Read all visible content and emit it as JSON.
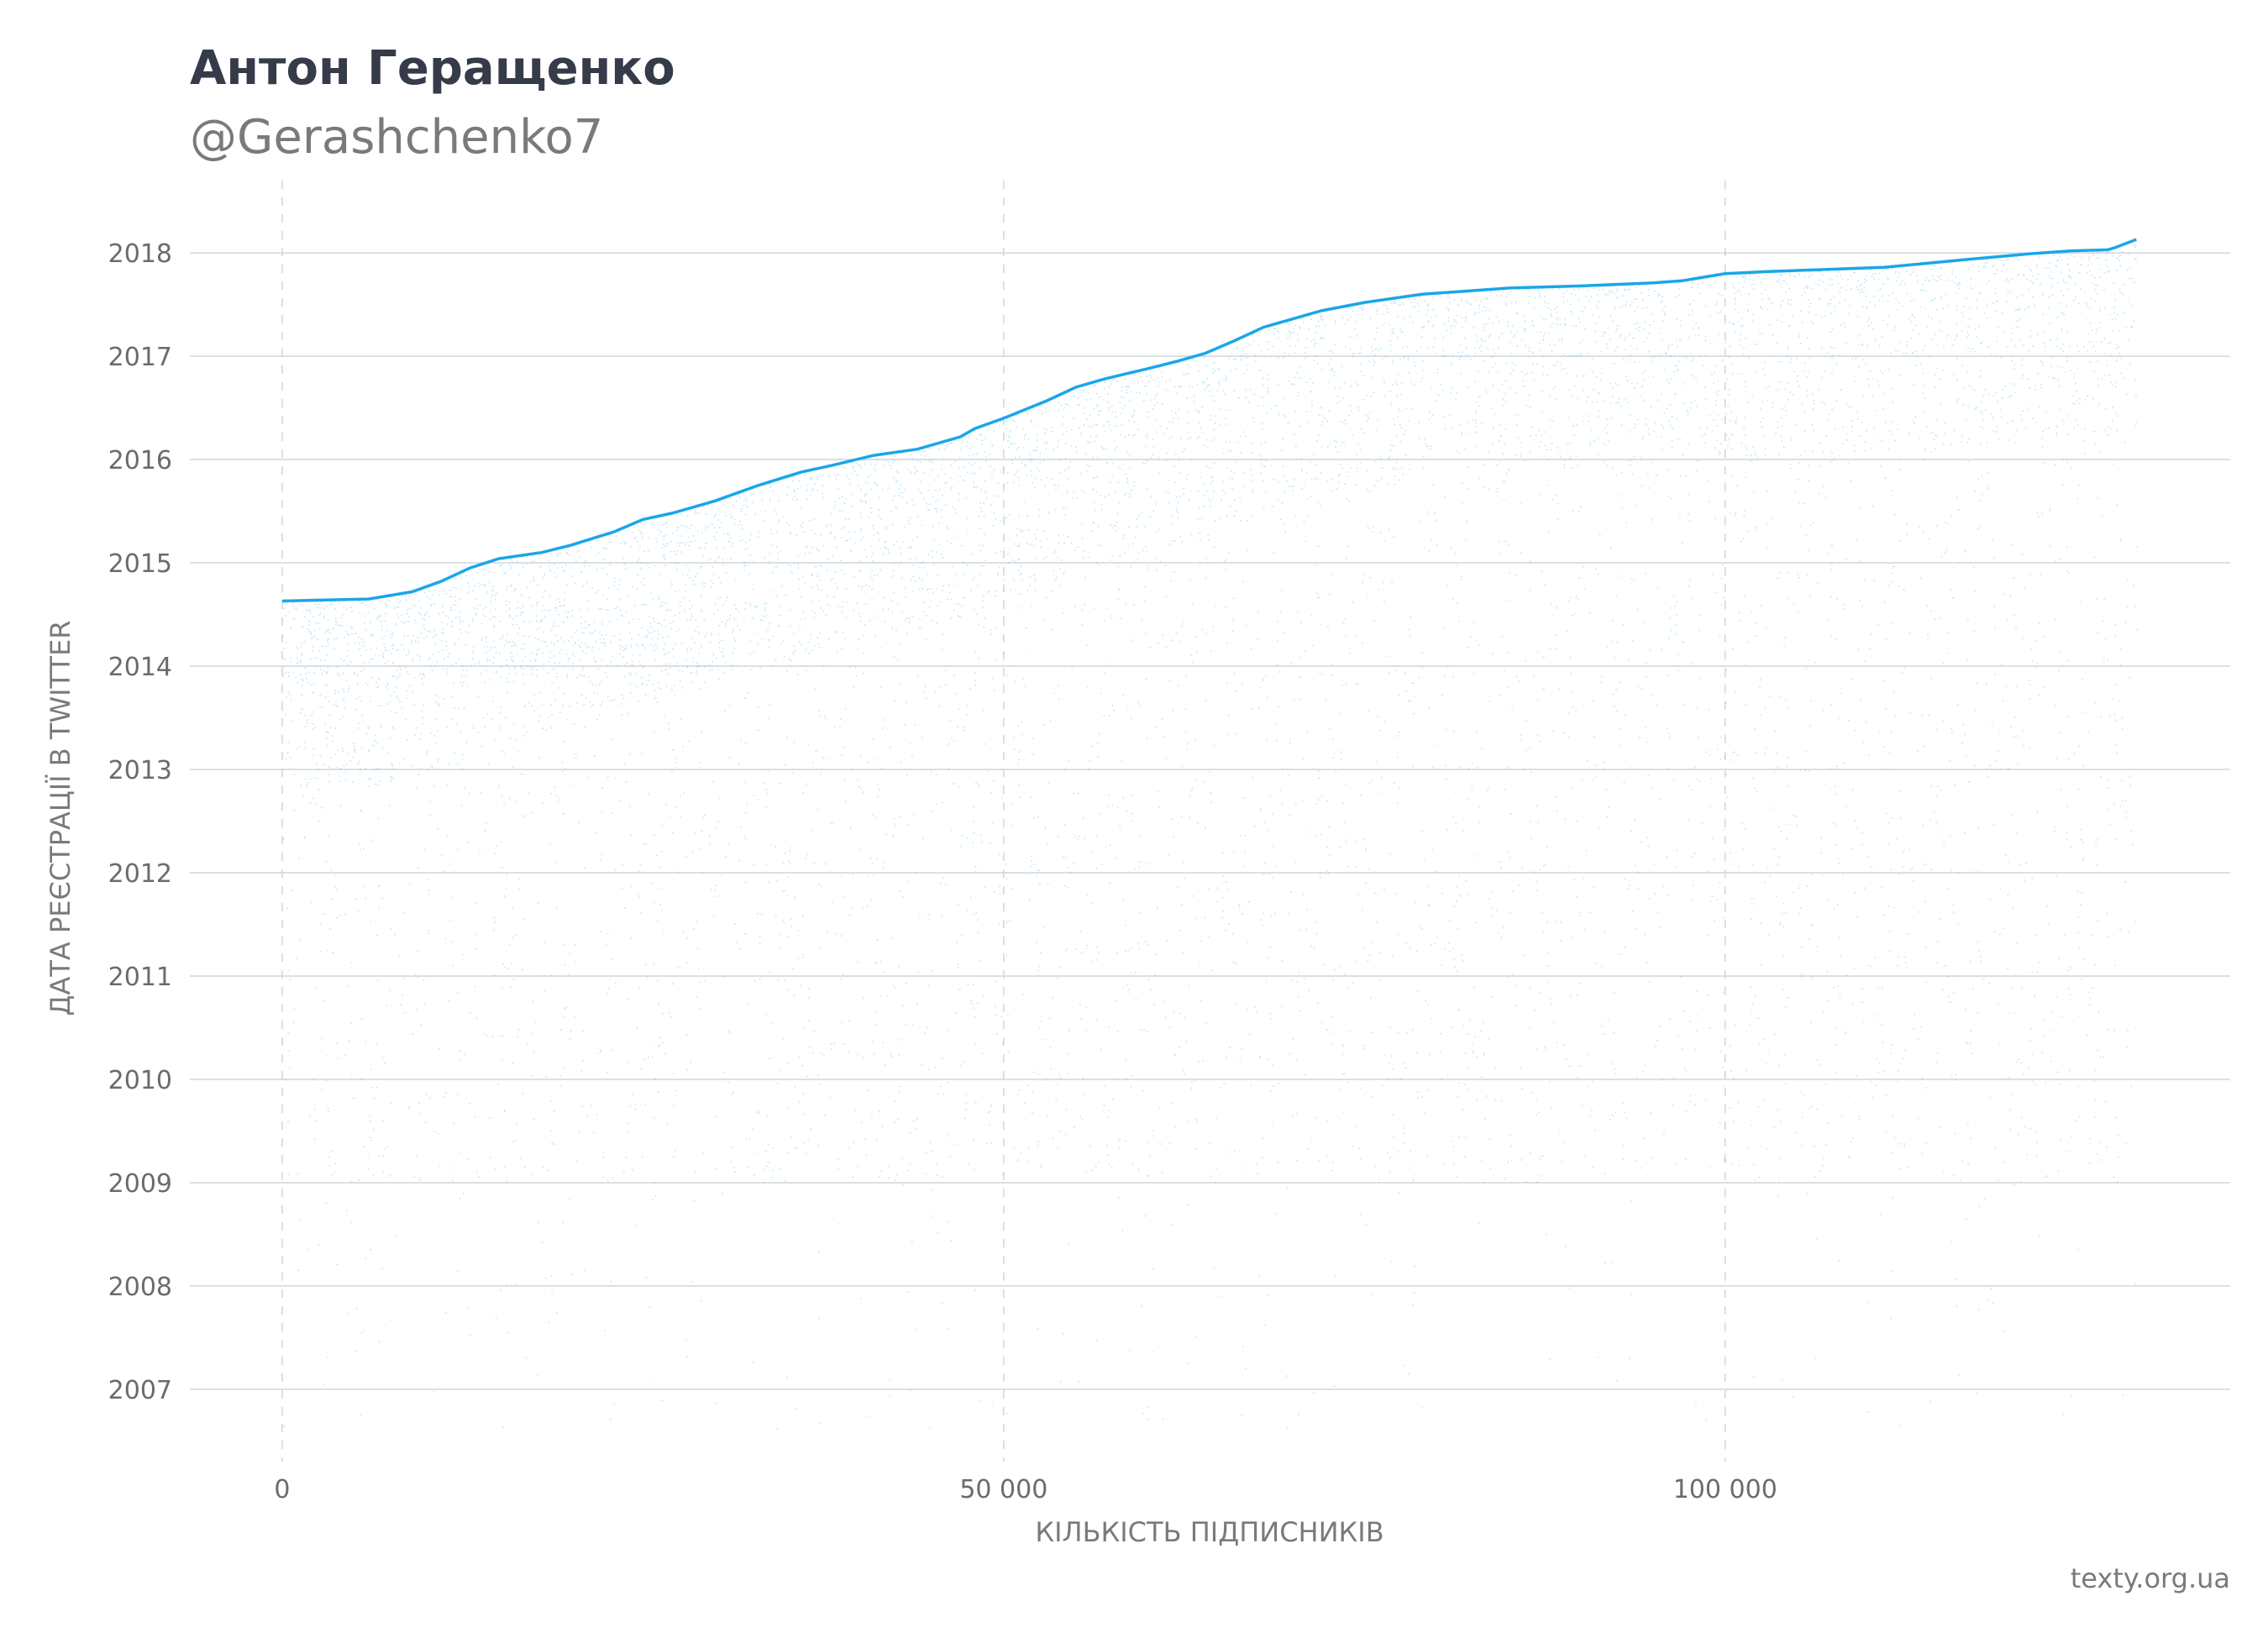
{
  "header": {
    "title": "Антон Геращенко",
    "subtitle": "@Gerashchenko7"
  },
  "footer": {
    "source": "texty.org.ua"
  },
  "colors": {
    "accent": "#1aa6e8",
    "grid": "#cfd6dc",
    "text": "#353b48",
    "muted": "#7a7a7a"
  },
  "chart_data": {
    "type": "scatter",
    "xlabel": "КІЛЬКІСТЬ ПІДПИСНИКІВ",
    "ylabel": "ДАТА РЕЄСТРАЦІЇ В TWITTER",
    "xlim": [
      -6400,
      135000
    ],
    "ylim": [
      2006.3,
      2018.7
    ],
    "x_ticks": [
      {
        "value": 0,
        "label": "0"
      },
      {
        "value": 50000,
        "label": "50 000"
      },
      {
        "value": 100000,
        "label": "100 000"
      }
    ],
    "y_ticks": [
      {
        "value": 2007,
        "label": "2007"
      },
      {
        "value": 2008,
        "label": "2008"
      },
      {
        "value": 2009,
        "label": "2009"
      },
      {
        "value": 2010,
        "label": "2010"
      },
      {
        "value": 2011,
        "label": "2011"
      },
      {
        "value": 2012,
        "label": "2012"
      },
      {
        "value": 2013,
        "label": "2013"
      },
      {
        "value": 2014,
        "label": "2014"
      },
      {
        "value": 2015,
        "label": "2015"
      },
      {
        "value": 2016,
        "label": "2016"
      },
      {
        "value": 2017,
        "label": "2017"
      },
      {
        "value": 2018,
        "label": "2018"
      }
    ],
    "grid": {
      "horizontal": "solid",
      "vertical": "dashed"
    },
    "series": [
      {
        "role": "upper-envelope",
        "color": "#1aa6e8",
        "points": [
          [
            0,
            2014.63
          ],
          [
            3000,
            2014.64
          ],
          [
            6000,
            2014.65
          ],
          [
            9000,
            2014.72
          ],
          [
            11000,
            2014.82
          ],
          [
            13000,
            2014.95
          ],
          [
            15000,
            2015.04
          ],
          [
            18000,
            2015.1
          ],
          [
            20000,
            2015.17
          ],
          [
            23000,
            2015.3
          ],
          [
            25000,
            2015.42
          ],
          [
            27000,
            2015.48
          ],
          [
            30000,
            2015.6
          ],
          [
            33000,
            2015.75
          ],
          [
            36000,
            2015.88
          ],
          [
            38000,
            2015.94
          ],
          [
            41000,
            2016.04
          ],
          [
            44000,
            2016.1
          ],
          [
            47000,
            2016.22
          ],
          [
            48000,
            2016.3
          ],
          [
            50000,
            2016.4
          ],
          [
            53000,
            2016.57
          ],
          [
            55000,
            2016.7
          ],
          [
            57000,
            2016.78
          ],
          [
            60000,
            2016.88
          ],
          [
            62000,
            2016.95
          ],
          [
            64000,
            2017.03
          ],
          [
            66000,
            2017.15
          ],
          [
            68000,
            2017.28
          ],
          [
            70000,
            2017.36
          ],
          [
            72000,
            2017.44
          ],
          [
            75000,
            2017.52
          ],
          [
            79000,
            2017.6
          ],
          [
            82000,
            2017.63
          ],
          [
            85000,
            2017.66
          ],
          [
            90000,
            2017.68
          ],
          [
            95000,
            2017.71
          ],
          [
            97000,
            2017.73
          ],
          [
            100000,
            2017.8
          ],
          [
            103000,
            2017.82
          ],
          [
            107000,
            2017.84
          ],
          [
            111000,
            2017.86
          ],
          [
            114000,
            2017.9
          ],
          [
            117000,
            2017.94
          ],
          [
            121000,
            2017.99
          ],
          [
            124000,
            2018.02
          ],
          [
            126500,
            2018.03
          ],
          [
            127000,
            2018.05
          ],
          [
            128500,
            2018.13
          ]
        ]
      },
      {
        "role": "followers-cloud",
        "color": "#1aa6e8",
        "x_range": [
          0,
          128500
        ],
        "y_min": 2006.6,
        "y_max": "upper-envelope",
        "density_note": "dense band near 2014, sparse before 2009"
      }
    ]
  }
}
